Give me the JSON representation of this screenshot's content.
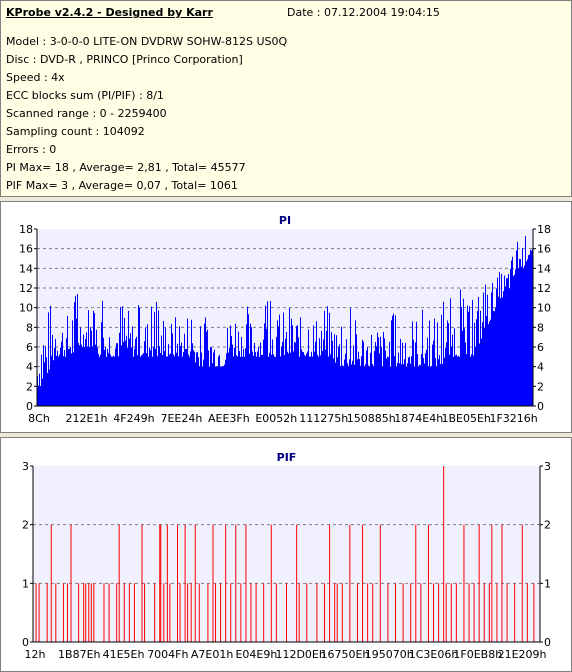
{
  "info": {
    "title": "KProbe v2.4.2 - Designed by Karr",
    "date": "Date : 07.12.2004 19:04:15",
    "lines": [
      "Model : 3-0-0-0 LITE-ON DVDRW SOHW-812S  US0Q",
      "Disc : DVD-R , PRINCO [Princo Corporation]",
      "Speed : 4x",
      "ECC blocks sum (PI/PIF) : 8/1",
      "Scanned range : 0 - 2259400",
      "Sampling count : 104092",
      "Errors : 0",
      "PI Max= 18 , Average= 2,81 , Total= 45577",
      "PIF Max= 3 , Average= 0,07 , Total= 1061"
    ]
  },
  "colors": {
    "pi": "#0000ff",
    "pif": "#ff0000",
    "grid": "#808080",
    "plot_bg": "#f0f0ff"
  },
  "chart_data": [
    {
      "type": "area",
      "title": "PI",
      "xlabel": "",
      "ylabel": "",
      "ylim": [
        0,
        18
      ],
      "yticks": [
        0,
        2,
        4,
        6,
        8,
        10,
        12,
        14,
        16,
        18
      ],
      "xtick_labels": [
        "8Ch",
        "212E1h",
        "4F249h",
        "7EE24h",
        "AEE3Fh",
        "E0052h",
        "111275h",
        "150885h",
        "1874E4h",
        "1BE05Eh",
        "1F3216h"
      ],
      "grid": true,
      "series": [
        {
          "values": [
            2,
            2,
            3,
            4,
            5,
            5,
            5,
            5,
            5,
            6,
            6,
            6,
            6,
            5,
            5,
            5,
            5,
            5,
            5,
            5,
            5,
            5,
            5,
            5,
            5,
            5,
            5,
            5,
            5,
            5,
            5,
            5,
            5,
            5,
            5,
            4,
            4,
            4,
            4,
            4,
            4,
            4,
            5,
            5,
            5,
            5,
            5,
            5,
            5,
            5,
            5,
            5,
            5,
            5,
            5,
            5,
            5,
            5,
            5,
            5,
            5,
            5,
            5,
            5,
            5,
            5,
            4,
            4,
            4,
            4,
            4,
            4,
            4,
            4,
            4,
            4,
            4,
            4,
            4,
            4,
            4,
            4,
            4,
            4,
            4,
            4,
            4,
            4,
            4,
            4,
            5,
            5,
            5,
            5,
            5,
            5,
            5,
            6,
            7,
            8,
            9,
            10,
            11,
            11,
            12,
            13,
            14,
            14,
            15,
            16
          ]
        },
        {
          "values": [
            7,
            13,
            10,
            11,
            12,
            10,
            9,
            10,
            13,
            11,
            10,
            11,
            10,
            9,
            11,
            10,
            9,
            10,
            11,
            12,
            10,
            9,
            10,
            11,
            9,
            10,
            11,
            9,
            10,
            9,
            9,
            10,
            9,
            10,
            11,
            9,
            8,
            9,
            10,
            8,
            9,
            8,
            9,
            12,
            10,
            9,
            11,
            9,
            10,
            9,
            10,
            11,
            10,
            9,
            10,
            9,
            11,
            10,
            9,
            10,
            12,
            9,
            10,
            11,
            10,
            9,
            9,
            8,
            9,
            10,
            9,
            9,
            8,
            9,
            8,
            9,
            8,
            9,
            9,
            10,
            9,
            11,
            9,
            10,
            9,
            10,
            12,
            9,
            10,
            11,
            10,
            11,
            10,
            12,
            11,
            10,
            11,
            12,
            13,
            12,
            13,
            13,
            14,
            14,
            15,
            16,
            17,
            17,
            18,
            16
          ]
        }
      ]
    },
    {
      "type": "bar",
      "title": "PIF",
      "xlabel": "",
      "ylabel": "",
      "ylim": [
        0,
        3
      ],
      "yticks": [
        0,
        1,
        2,
        3
      ],
      "xtick_labels": [
        "12h",
        "1B87Eh",
        "41E5Eh",
        "7004Fh",
        "A7E01h",
        "E04E9h",
        "112D0Eh",
        "16750Eh",
        "195070h",
        "1C3E06h",
        "1F0EB8h",
        "21E209h"
      ],
      "grid": true,
      "spikes": [
        {
          "x": 0.006,
          "v": 1
        },
        {
          "x": 0.012,
          "v": 1
        },
        {
          "x": 0.028,
          "v": 1
        },
        {
          "x": 0.036,
          "v": 2
        },
        {
          "x": 0.045,
          "v": 1
        },
        {
          "x": 0.06,
          "v": 1
        },
        {
          "x": 0.068,
          "v": 1
        },
        {
          "x": 0.075,
          "v": 2
        },
        {
          "x": 0.09,
          "v": 1
        },
        {
          "x": 0.1,
          "v": 1
        },
        {
          "x": 0.104,
          "v": 1
        },
        {
          "x": 0.11,
          "v": 1
        },
        {
          "x": 0.115,
          "v": 1
        },
        {
          "x": 0.12,
          "v": 1
        },
        {
          "x": 0.14,
          "v": 1
        },
        {
          "x": 0.15,
          "v": 1
        },
        {
          "x": 0.165,
          "v": 1
        },
        {
          "x": 0.17,
          "v": 2
        },
        {
          "x": 0.18,
          "v": 1
        },
        {
          "x": 0.19,
          "v": 1
        },
        {
          "x": 0.2,
          "v": 1
        },
        {
          "x": 0.215,
          "v": 2
        },
        {
          "x": 0.22,
          "v": 1
        },
        {
          "x": 0.24,
          "v": 1
        },
        {
          "x": 0.25,
          "v": 2
        },
        {
          "x": 0.252,
          "v": 2
        },
        {
          "x": 0.258,
          "v": 1
        },
        {
          "x": 0.265,
          "v": 2
        },
        {
          "x": 0.27,
          "v": 1
        },
        {
          "x": 0.285,
          "v": 2
        },
        {
          "x": 0.29,
          "v": 1
        },
        {
          "x": 0.3,
          "v": 2
        },
        {
          "x": 0.305,
          "v": 1
        },
        {
          "x": 0.312,
          "v": 1
        },
        {
          "x": 0.32,
          "v": 2
        },
        {
          "x": 0.328,
          "v": 1
        },
        {
          "x": 0.345,
          "v": 1
        },
        {
          "x": 0.355,
          "v": 2
        },
        {
          "x": 0.36,
          "v": 1
        },
        {
          "x": 0.37,
          "v": 1
        },
        {
          "x": 0.38,
          "v": 2
        },
        {
          "x": 0.39,
          "v": 1
        },
        {
          "x": 0.4,
          "v": 2
        },
        {
          "x": 0.41,
          "v": 1
        },
        {
          "x": 0.42,
          "v": 2
        },
        {
          "x": 0.43,
          "v": 1
        },
        {
          "x": 0.44,
          "v": 1
        },
        {
          "x": 0.455,
          "v": 1
        },
        {
          "x": 0.47,
          "v": 2
        },
        {
          "x": 0.48,
          "v": 1
        },
        {
          "x": 0.5,
          "v": 1
        },
        {
          "x": 0.52,
          "v": 2
        },
        {
          "x": 0.525,
          "v": 1
        },
        {
          "x": 0.54,
          "v": 1
        },
        {
          "x": 0.56,
          "v": 1
        },
        {
          "x": 0.575,
          "v": 1
        },
        {
          "x": 0.585,
          "v": 2
        },
        {
          "x": 0.595,
          "v": 1
        },
        {
          "x": 0.6,
          "v": 1
        },
        {
          "x": 0.61,
          "v": 1
        },
        {
          "x": 0.625,
          "v": 2
        },
        {
          "x": 0.64,
          "v": 1
        },
        {
          "x": 0.65,
          "v": 2
        },
        {
          "x": 0.66,
          "v": 1
        },
        {
          "x": 0.67,
          "v": 1
        },
        {
          "x": 0.685,
          "v": 2
        },
        {
          "x": 0.7,
          "v": 1
        },
        {
          "x": 0.715,
          "v": 1
        },
        {
          "x": 0.73,
          "v": 1
        },
        {
          "x": 0.745,
          "v": 1
        },
        {
          "x": 0.755,
          "v": 2
        },
        {
          "x": 0.765,
          "v": 1
        },
        {
          "x": 0.78,
          "v": 2
        },
        {
          "x": 0.79,
          "v": 1
        },
        {
          "x": 0.8,
          "v": 1
        },
        {
          "x": 0.81,
          "v": 3
        },
        {
          "x": 0.815,
          "v": 1
        },
        {
          "x": 0.825,
          "v": 1
        },
        {
          "x": 0.835,
          "v": 1
        },
        {
          "x": 0.85,
          "v": 2
        },
        {
          "x": 0.86,
          "v": 1
        },
        {
          "x": 0.87,
          "v": 1
        },
        {
          "x": 0.88,
          "v": 2
        },
        {
          "x": 0.89,
          "v": 1
        },
        {
          "x": 0.9,
          "v": 1
        },
        {
          "x": 0.905,
          "v": 2
        },
        {
          "x": 0.915,
          "v": 1
        },
        {
          "x": 0.925,
          "v": 2
        },
        {
          "x": 0.935,
          "v": 1
        },
        {
          "x": 0.95,
          "v": 1
        },
        {
          "x": 0.965,
          "v": 2
        },
        {
          "x": 0.975,
          "v": 1
        },
        {
          "x": 0.988,
          "v": 1
        }
      ]
    }
  ]
}
